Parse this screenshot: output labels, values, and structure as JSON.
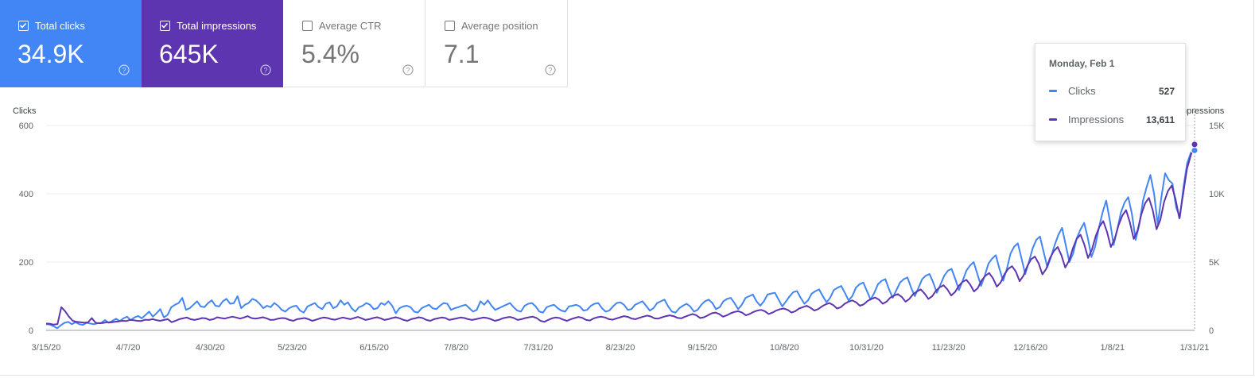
{
  "cards": [
    {
      "label": "Total clicks",
      "value": "34.9K",
      "checked": true,
      "color": "#4285f4"
    },
    {
      "label": "Total impressions",
      "value": "645K",
      "checked": true,
      "color": "#5e35b1"
    },
    {
      "label": "Average CTR",
      "value": "5.4%",
      "checked": false
    },
    {
      "label": "Average position",
      "value": "7.1",
      "checked": false
    }
  ],
  "tooltip": {
    "date": "Monday, Feb 1",
    "rows": [
      {
        "name": "Clicks",
        "value": "527",
        "color": "#4285f4"
      },
      {
        "name": "Impressions",
        "value": "13,611",
        "color": "#5e35b1"
      }
    ]
  },
  "chart_data": {
    "type": "line",
    "left_axis_title": "Clicks",
    "right_axis_title": "Impressions",
    "left_ticks": [
      "600",
      "400",
      "200",
      "0"
    ],
    "right_ticks": [
      "15K",
      "10K",
      "5K",
      "0"
    ],
    "left_ylim": [
      0,
      600
    ],
    "right_ylim": [
      0,
      15000
    ],
    "x_tick_labels": [
      "3/15/20",
      "4/7/20",
      "4/30/20",
      "5/23/20",
      "6/15/20",
      "7/8/20",
      "7/31/20",
      "8/23/20",
      "9/15/20",
      "10/8/20",
      "10/31/20",
      "11/23/20",
      "12/16/20",
      "1/8/21",
      "1/31/21"
    ],
    "grid": true,
    "series": [
      {
        "name": "Clicks",
        "axis": "left",
        "color": "#4285f4",
        "values": [
          18,
          17,
          12,
          6,
          15,
          22,
          25,
          18,
          24,
          18,
          16,
          22,
          20,
          18,
          21,
          22,
          30,
          22,
          28,
          34,
          27,
          35,
          40,
          30,
          38,
          42,
          35,
          45,
          55,
          40,
          50,
          62,
          38,
          45,
          68,
          75,
          80,
          95,
          60,
          65,
          75,
          85,
          70,
          68,
          80,
          88,
          72,
          70,
          85,
          92,
          78,
          80,
          100,
          65,
          75,
          80,
          92,
          88,
          78,
          65,
          72,
          68,
          80,
          72,
          60,
          55,
          65,
          70,
          72,
          58,
          52,
          70,
          75,
          80,
          68,
          62,
          78,
          82,
          65,
          70,
          88,
          75,
          82,
          65,
          55,
          68,
          72,
          80,
          75,
          62,
          65,
          80,
          75,
          85,
          72,
          50,
          65,
          70,
          72,
          68,
          55,
          52,
          65,
          70,
          75,
          65,
          62,
          72,
          80,
          78,
          60,
          65,
          68,
          72,
          75,
          65,
          55,
          60,
          85,
          75,
          88,
          72,
          60,
          65,
          70,
          75,
          80,
          68,
          58,
          55,
          72,
          78,
          80,
          70,
          55,
          52,
          68,
          72,
          75,
          65,
          58,
          55,
          70,
          72,
          75,
          70,
          58,
          60,
          72,
          78,
          80,
          65,
          55,
          58,
          70,
          80,
          82,
          75,
          60,
          62,
          75,
          80,
          85,
          72,
          58,
          65,
          80,
          85,
          90,
          70,
          55,
          52,
          65,
          72,
          78,
          70,
          55,
          60,
          75,
          85,
          90,
          80,
          62,
          68,
          85,
          92,
          95,
          80,
          62,
          75,
          95,
          100,
          105,
          85,
          72,
          85,
          105,
          108,
          110,
          90,
          70,
          85,
          100,
          112,
          115,
          95,
          78,
          88,
          108,
          115,
          120,
          100,
          82,
          95,
          118,
          125,
          130,
          110,
          88,
          100,
          125,
          135,
          140,
          115,
          90,
          110,
          135,
          145,
          150,
          120,
          95,
          118,
          140,
          150,
          155,
          125,
          100,
          125,
          150,
          160,
          165,
          140,
          110,
          135,
          160,
          175,
          180,
          150,
          118,
          145,
          175,
          190,
          200,
          165,
          130,
          160,
          195,
          210,
          220,
          180,
          145,
          180,
          225,
          245,
          255,
          210,
          165,
          200,
          240,
          265,
          275,
          230,
          185,
          215,
          250,
          280,
          300,
          250,
          200,
          225,
          270,
          295,
          315,
          270,
          215,
          245,
          300,
          345,
          380,
          320,
          250,
          295,
          345,
          375,
          390,
          340,
          265,
          310,
          380,
          420,
          455,
          400,
          310,
          390,
          460,
          440,
          430,
          360,
          330,
          420,
          490,
          520,
          527
        ]
      },
      {
        "name": "Impressions",
        "axis": "right",
        "color": "#5e35b1",
        "values": [
          500,
          480,
          420,
          460,
          1700,
          1400,
          1000,
          700,
          620,
          600,
          560,
          580,
          900,
          550,
          520,
          540,
          600,
          580,
          620,
          650,
          700,
          680,
          760,
          740,
          700,
          680,
          780,
          760,
          820,
          750,
          700,
          760,
          820,
          600,
          700,
          820,
          880,
          940,
          820,
          760,
          820,
          900,
          880,
          760,
          820,
          960,
          900,
          860,
          940,
          1000,
          940,
          860,
          940,
          1040,
          900,
          860,
          900,
          960,
          880,
          760,
          780,
          860,
          900,
          880,
          760,
          700,
          820,
          860,
          900,
          820,
          700,
          780,
          880,
          940,
          900,
          820,
          780,
          860,
          940,
          880,
          820,
          900,
          980,
          880,
          760,
          820,
          900,
          960,
          880,
          760,
          820,
          900,
          960,
          880,
          760,
          700,
          820,
          880,
          960,
          900,
          760,
          700,
          820,
          880,
          940,
          900,
          760,
          820,
          880,
          940,
          900,
          820,
          760,
          820,
          880,
          940,
          900,
          820,
          700,
          760,
          880,
          940,
          980,
          900,
          760,
          820,
          900,
          960,
          1000,
          900,
          700,
          620,
          760,
          880,
          940,
          900,
          780,
          700,
          820,
          900,
          980,
          920,
          760,
          720,
          880,
          960,
          1000,
          940,
          820,
          780,
          880,
          960,
          1040,
          980,
          860,
          820,
          920,
          1000,
          1080,
          1020,
          880,
          860,
          960,
          1040,
          1100,
          1040,
          920,
          880,
          1000,
          1100,
          1200,
          1100,
          900,
          960,
          1100,
          1250,
          1300,
          1200,
          1000,
          1100,
          1250,
          1350,
          1400,
          1300,
          1100,
          1200,
          1350,
          1450,
          1500,
          1400,
          1200,
          1300,
          1450,
          1550,
          1600,
          1500,
          1300,
          1400,
          1600,
          1700,
          1800,
          1650,
          1450,
          1550,
          1750,
          1900,
          2000,
          1850,
          1600,
          1700,
          1950,
          2100,
          2200,
          2050,
          1800,
          1900,
          2150,
          2300,
          2400,
          2250,
          1950,
          2100,
          2400,
          2550,
          2650,
          2450,
          2100,
          2300,
          2650,
          2850,
          3000,
          2700,
          2300,
          2500,
          2900,
          3150,
          3300,
          3000,
          2550,
          2800,
          3250,
          3550,
          3700,
          3350,
          2850,
          3100,
          3650,
          4000,
          4200,
          3800,
          3200,
          3500,
          4100,
          4500,
          4700,
          4300,
          3600,
          4000,
          4700,
          5200,
          5400,
          4900,
          4100,
          4500,
          5300,
          5800,
          6100,
          5500,
          4600,
          5100,
          6000,
          6700,
          7000,
          6300,
          5300,
          5900,
          6900,
          7600,
          8000,
          7200,
          6100,
          6700,
          7700,
          8400,
          8800,
          7900,
          6700,
          7300,
          8500,
          9300,
          9700,
          8800,
          7400,
          8100,
          9400,
          10200,
          10600,
          9600,
          8200,
          10000,
          11800,
          12800,
          13611
        ]
      }
    ]
  }
}
